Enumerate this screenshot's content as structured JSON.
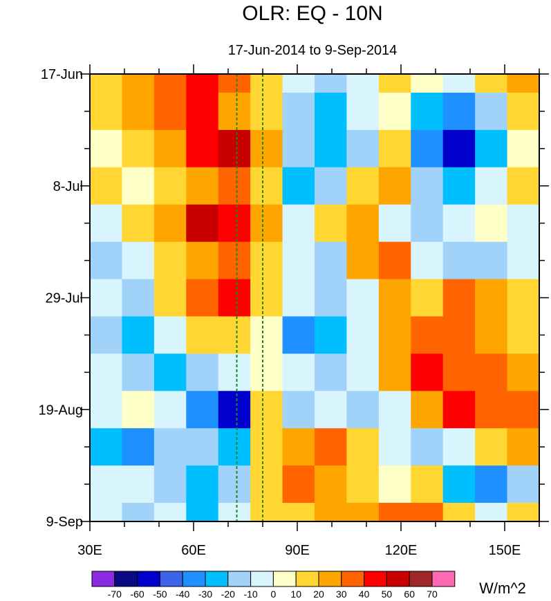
{
  "chart_data": {
    "type": "heatmap",
    "title": "OLR: EQ - 10N",
    "subtitle": "17-Jun-2014 to 9-Sep-2014",
    "xlabel": "",
    "ylabel": "",
    "x_domain": [
      30,
      160
    ],
    "x_ticks": [
      {
        "value": 30,
        "label": "30E"
      },
      {
        "value": 60,
        "label": "60E"
      },
      {
        "value": 90,
        "label": "90E"
      },
      {
        "value": 120,
        "label": "120E"
      },
      {
        "value": 150,
        "label": "150E"
      }
    ],
    "y_domain_days": [
      0,
      84
    ],
    "y_ticks": [
      {
        "day": 0,
        "label": "17-Jun"
      },
      {
        "day": 21,
        "label": "8-Jul"
      },
      {
        "day": 42,
        "label": "29-Jul"
      },
      {
        "day": 63,
        "label": "19-Aug"
      },
      {
        "day": 84,
        "label": "9-Sep"
      }
    ],
    "reference_lines_lon": [
      72.5,
      80
    ],
    "reference_line_color": "#1a8a1a",
    "colorbar": {
      "units": "W/m^2",
      "levels": [
        -70,
        -60,
        -50,
        -40,
        -30,
        -20,
        -10,
        0,
        10,
        20,
        30,
        40,
        50,
        60,
        70
      ],
      "colors": [
        "#8a2be2",
        "#0a0a82",
        "#0000cd",
        "#3c64e6",
        "#1e90ff",
        "#00bfff",
        "#a0d2fa",
        "#d8f4fc",
        "#ffffc8",
        "#ffd632",
        "#ffa500",
        "#ff6400",
        "#ff0000",
        "#c80000",
        "#a02828",
        "#ff69b4"
      ]
    },
    "missing_color": "#c0c0c0",
    "field_description": "Outgoing longwave radiation anomaly, EQ-10N average; northward-propagating alternating positive (red/orange) and negative (blue) bands",
    "values_by_band": [
      {
        "day": 0,
        "values": [
          10,
          20,
          30,
          40,
          30,
          10,
          -10,
          -20,
          -10,
          10,
          0,
          -10,
          10,
          20
        ]
      },
      {
        "day": 7,
        "values": [
          10,
          20,
          30,
          40,
          20,
          10,
          -20,
          -30,
          -10,
          0,
          -30,
          -40,
          -20,
          10
        ]
      },
      {
        "day": 14,
        "values": [
          0,
          10,
          20,
          40,
          50,
          20,
          -20,
          -30,
          -20,
          10,
          -40,
          -60,
          -30,
          0
        ]
      },
      {
        "day": 21,
        "values": [
          10,
          0,
          10,
          20,
          30,
          10,
          -30,
          -20,
          10,
          20,
          -20,
          -30,
          -10,
          10
        ]
      },
      {
        "day": 28,
        "values": [
          -10,
          10,
          20,
          50,
          40,
          20,
          -10,
          10,
          20,
          -10,
          -20,
          -10,
          0,
          -10
        ]
      },
      {
        "day": 35,
        "values": [
          -20,
          -10,
          10,
          20,
          30,
          10,
          -10,
          -20,
          20,
          30,
          -10,
          -20,
          -20,
          -10
        ]
      },
      {
        "day": 42,
        "values": [
          -10,
          -20,
          10,
          30,
          40,
          10,
          -10,
          -20,
          -10,
          20,
          10,
          30,
          20,
          10
        ]
      },
      {
        "day": 49,
        "values": [
          -20,
          -30,
          -10,
          10,
          10,
          0,
          -40,
          -30,
          -10,
          20,
          30,
          30,
          20,
          10
        ]
      },
      {
        "day": 56,
        "values": [
          -10,
          -20,
          -30,
          -20,
          -10,
          0,
          -10,
          -20,
          -10,
          20,
          40,
          30,
          30,
          20
        ]
      },
      {
        "day": 63,
        "values": [
          -10,
          0,
          -10,
          -40,
          -60,
          10,
          -20,
          -10,
          -20,
          -10,
          20,
          40,
          30,
          30
        ]
      },
      {
        "day": 70,
        "values": [
          -30,
          -40,
          -20,
          -20,
          -30,
          10,
          20,
          30,
          10,
          -10,
          -20,
          -10,
          10,
          20
        ]
      },
      {
        "day": 77,
        "values": [
          -10,
          -10,
          -20,
          -30,
          -20,
          10,
          30,
          20,
          10,
          0,
          10,
          -30,
          -40,
          -20
        ]
      },
      {
        "day": 84,
        "values": [
          -10,
          -20,
          -10,
          -30,
          -10,
          10,
          10,
          20,
          20,
          30,
          30,
          10,
          -10,
          10
        ]
      }
    ]
  }
}
